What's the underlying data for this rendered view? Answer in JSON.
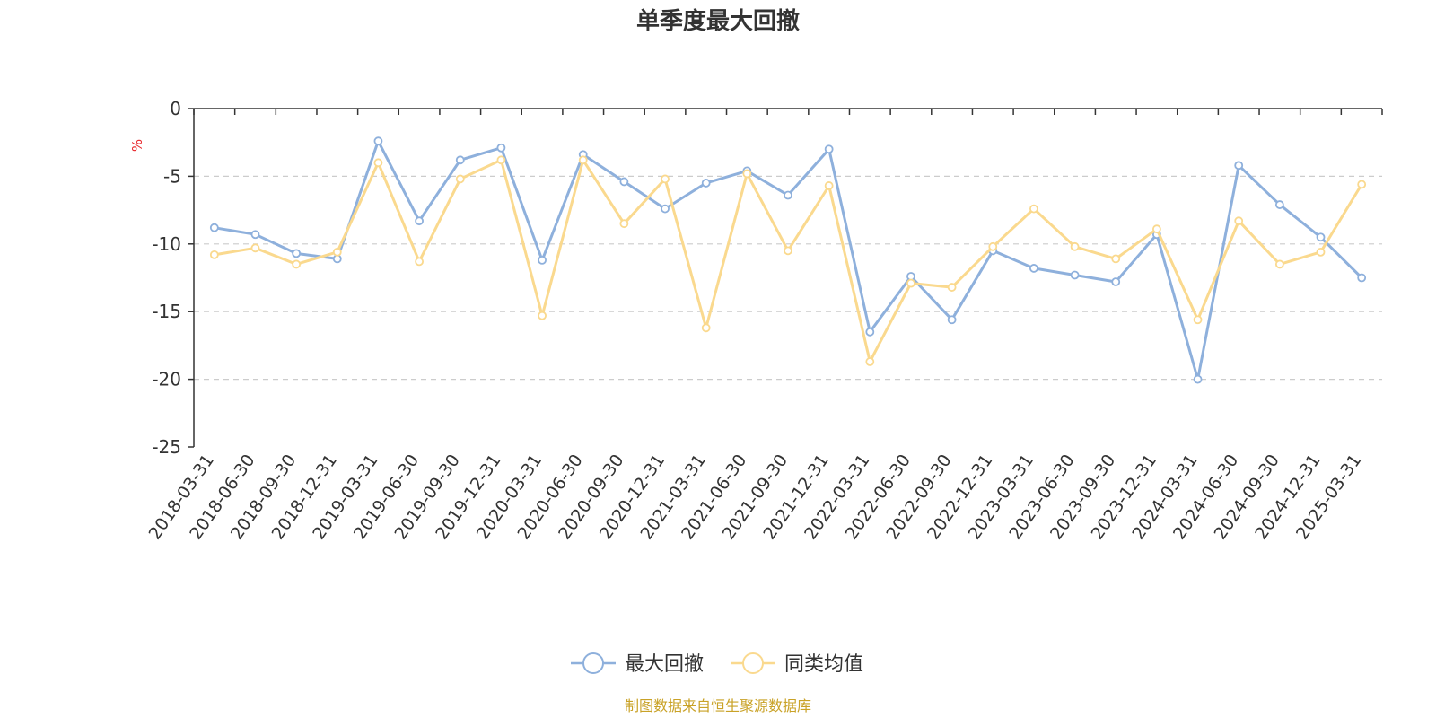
{
  "chart_data": {
    "type": "line",
    "title": "单季度最大回撤",
    "ylabel": "%",
    "ylim": [
      -25,
      0
    ],
    "yticks": [
      0,
      -5,
      -10,
      -15,
      -20,
      -25
    ],
    "grid": true,
    "legend_position": "bottom-center",
    "categories": [
      "2018-03-31",
      "2018-06-30",
      "2018-09-30",
      "2018-12-31",
      "2019-03-31",
      "2019-06-30",
      "2019-09-30",
      "2019-12-31",
      "2020-03-31",
      "2020-06-30",
      "2020-09-30",
      "2020-12-31",
      "2021-03-31",
      "2021-06-30",
      "2021-09-30",
      "2021-12-31",
      "2022-03-31",
      "2022-06-30",
      "2022-09-30",
      "2022-12-31",
      "2023-03-31",
      "2023-06-30",
      "2023-09-30",
      "2023-12-31",
      "2024-03-31",
      "2024-06-30",
      "2024-09-30",
      "2024-12-31",
      "2025-03-31"
    ],
    "series": [
      {
        "name": "最大回撤",
        "color": "#8eb0dc",
        "values": [
          -8.8,
          -9.3,
          -10.7,
          -11.1,
          -2.4,
          -8.3,
          -3.8,
          -2.9,
          -11.2,
          -3.4,
          -5.4,
          -7.4,
          -5.5,
          -4.6,
          -6.4,
          -3.0,
          -16.5,
          -12.4,
          -15.6,
          -10.5,
          -11.8,
          -12.3,
          -12.8,
          -9.3,
          -20.0,
          -4.2,
          -7.1,
          -9.5,
          -12.5
        ]
      },
      {
        "name": "同类均值",
        "color": "#fad98e",
        "values": [
          -10.8,
          -10.3,
          -11.5,
          -10.6,
          -4.0,
          -11.3,
          -5.2,
          -3.8,
          -15.3,
          -3.8,
          -8.5,
          -5.2,
          -16.2,
          -4.8,
          -10.5,
          -5.7,
          -18.7,
          -12.9,
          -13.2,
          -10.2,
          -7.4,
          -10.2,
          -11.1,
          -8.9,
          -15.6,
          -8.3,
          -11.5,
          -10.6,
          -5.6
        ]
      }
    ],
    "source_note": "制图数据来自恒生聚源数据库"
  }
}
